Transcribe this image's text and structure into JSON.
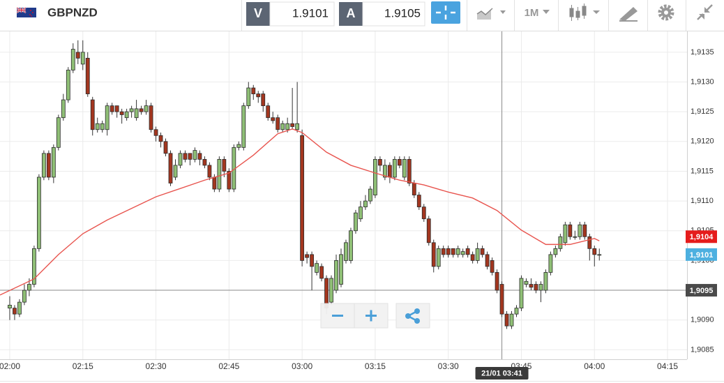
{
  "toolbar": {
    "symbol": "GBPNZD",
    "bid_label": "V",
    "bid": 1.9101,
    "ask_label": "A",
    "ask": 1.9105,
    "period": "1M"
  },
  "chart_data": {
    "type": "candlestick",
    "up_color": "#8fbf76",
    "down_color": "#a3361f",
    "x": [
      "02:00",
      "02:01",
      "02:02",
      "02:03",
      "02:04",
      "02:05",
      "02:06",
      "02:07",
      "02:08",
      "02:09",
      "02:10",
      "02:11",
      "02:12",
      "02:13",
      "02:14",
      "02:15",
      "02:16",
      "02:17",
      "02:18",
      "02:19",
      "02:20",
      "02:21",
      "02:22",
      "02:23",
      "02:24",
      "02:25",
      "02:26",
      "02:27",
      "02:28",
      "02:29",
      "02:30",
      "02:31",
      "02:32",
      "02:33",
      "02:34",
      "02:35",
      "02:36",
      "02:37",
      "02:38",
      "02:39",
      "02:40",
      "02:41",
      "02:42",
      "02:43",
      "02:44",
      "02:45",
      "02:46",
      "02:47",
      "02:48",
      "02:49",
      "02:50",
      "02:51",
      "02:52",
      "02:53",
      "02:54",
      "02:55",
      "02:56",
      "02:57",
      "02:58",
      "02:59",
      "03:00",
      "03:01",
      "03:02",
      "03:03",
      "03:04",
      "03:05",
      "03:06",
      "03:07",
      "03:08",
      "03:09",
      "03:10",
      "03:11",
      "03:12",
      "03:13",
      "03:14",
      "03:15",
      "03:16",
      "03:17",
      "03:18",
      "03:19",
      "03:20",
      "03:21",
      "03:22",
      "03:23",
      "03:24",
      "03:25",
      "03:26",
      "03:27",
      "03:28",
      "03:29",
      "03:30",
      "03:31",
      "03:32",
      "03:33",
      "03:34",
      "03:35",
      "03:36",
      "03:37",
      "03:38",
      "03:39",
      "03:40",
      "03:41",
      "03:42",
      "03:43",
      "03:44",
      "03:45",
      "03:46",
      "03:47",
      "03:48",
      "03:49",
      "03:50",
      "03:51",
      "03:52",
      "03:53",
      "03:54",
      "03:55",
      "03:56",
      "03:57",
      "03:58",
      "03:59",
      "04:00",
      "04:01"
    ],
    "open": [
      1.9092,
      1.9092,
      1.9091,
      1.9093,
      1.9095,
      1.9096,
      1.9102,
      1.9114,
      1.9118,
      1.9114,
      1.9119,
      1.9124,
      1.9127,
      1.9132,
      1.9135,
      1.9133,
      1.9134,
      1.9127,
      1.9122,
      1.9122,
      1.9122,
      1.9126,
      1.9126,
      1.9125,
      1.9124,
      1.9125,
      1.9124,
      1.91255,
      1.9125,
      1.9126,
      1.9122,
      1.9121,
      1.912,
      1.9118,
      1.9114,
      1.9116,
      1.9118,
      1.9118,
      1.9117,
      1.9118,
      1.9117,
      1.9116,
      1.9114,
      1.9112,
      1.9117,
      1.9115,
      1.9112,
      1.9119,
      1.9119,
      1.9126,
      1.9129,
      1.9128,
      1.9128,
      1.9126,
      1.9124,
      1.9124,
      1.9122,
      1.9122,
      1.9123,
      1.9122,
      1.9121,
      1.9101,
      1.9101,
      1.9098,
      1.9099,
      1.9097,
      1.9093,
      1.9095,
      1.9096,
      1.91,
      1.91,
      1.9105,
      1.9107,
      1.9109,
      1.911,
      1.9111,
      1.9117,
      1.9114,
      1.9116,
      1.9114,
      1.9117,
      1.9114,
      1.9117,
      1.9113,
      1.9111,
      1.9109,
      1.9107,
      1.9103,
      1.9099,
      1.9102,
      1.9102,
      1.9102,
      1.9101,
      1.9101,
      1.9102,
      1.9101,
      1.91,
      1.9102,
      1.9101,
      1.91,
      1.9098,
      1.9096,
      1.9091,
      1.9089,
      1.9091,
      1.9092,
      1.9096,
      1.9096,
      1.9096,
      1.9095,
      1.9095,
      1.9098,
      1.9101,
      1.9102,
      1.9103,
      1.9106,
      1.9104,
      1.9104,
      1.9106,
      1.9104,
      1.9102,
      1.9101
    ],
    "high": [
      1.9094,
      1.90925,
      1.90935,
      1.9096,
      1.9097,
      1.91025,
      1.91145,
      1.91185,
      1.91185,
      1.91195,
      1.91245,
      1.9128,
      1.91325,
      1.91365,
      1.9137,
      1.9137,
      1.9135,
      1.91275,
      1.9124,
      1.91235,
      1.91265,
      1.91265,
      1.9126,
      1.91255,
      1.91255,
      1.9126,
      1.9127,
      1.9126,
      1.9127,
      1.91265,
      1.91225,
      1.91215,
      1.91205,
      1.91185,
      1.9117,
      1.91185,
      1.91185,
      1.9118,
      1.9119,
      1.91185,
      1.91175,
      1.91165,
      1.91145,
      1.91175,
      1.91175,
      1.91155,
      1.91195,
      1.912,
      1.91265,
      1.913,
      1.91295,
      1.91285,
      1.91285,
      1.91265,
      1.9125,
      1.91245,
      1.91235,
      1.9124,
      1.9129,
      1.913,
      1.9122,
      1.91015,
      1.91015,
      1.91,
      1.90995,
      1.90975,
      1.90975,
      1.9101,
      1.9102,
      1.91035,
      1.91055,
      1.91085,
      1.911,
      1.9111,
      1.91125,
      1.91175,
      1.91175,
      1.9117,
      1.91165,
      1.91175,
      1.91175,
      1.91175,
      1.91175,
      1.91135,
      1.91115,
      1.91095,
      1.91075,
      1.91035,
      1.91025,
      1.91025,
      1.91025,
      1.9102,
      1.91025,
      1.9102,
      1.91025,
      1.91015,
      1.9103,
      1.91025,
      1.91015,
      1.91005,
      1.90985,
      1.90965,
      1.90915,
      1.90915,
      1.90925,
      1.90975,
      1.9097,
      1.9097,
      1.90965,
      1.90965,
      1.90985,
      1.91015,
      1.91025,
      1.91045,
      1.91065,
      1.91065,
      1.9105,
      1.91065,
      1.91065,
      1.91045,
      1.91025,
      1.9102
    ],
    "low": [
      1.909,
      1.909,
      1.90905,
      1.90925,
      1.9094,
      1.90955,
      1.91015,
      1.91135,
      1.91135,
      1.9113,
      1.91185,
      1.91235,
      1.91265,
      1.91315,
      1.9133,
      1.9132,
      1.91275,
      1.9121,
      1.91215,
      1.91215,
      1.9121,
      1.91245,
      1.9124,
      1.9123,
      1.91235,
      1.9124,
      1.91235,
      1.91245,
      1.91245,
      1.91215,
      1.912,
      1.9119,
      1.91175,
      1.91125,
      1.91135,
      1.91155,
      1.91165,
      1.9116,
      1.91165,
      1.9116,
      1.91155,
      1.91135,
      1.91115,
      1.91115,
      1.9114,
      1.91115,
      1.91115,
      1.91185,
      1.91185,
      1.91255,
      1.9127,
      1.91265,
      1.9125,
      1.91235,
      1.9123,
      1.91215,
      1.91215,
      1.91215,
      1.9122,
      1.91215,
      1.9099,
      1.90995,
      1.9095,
      1.90975,
      1.90965,
      1.9091,
      1.90925,
      1.90945,
      1.90955,
      1.90995,
      1.90995,
      1.91045,
      1.91065,
      1.91085,
      1.91095,
      1.91105,
      1.9115,
      1.91135,
      1.9113,
      1.91135,
      1.91155,
      1.91135,
      1.91125,
      1.91105,
      1.91085,
      1.91065,
      1.91025,
      1.9098,
      1.90985,
      1.91005,
      1.91005,
      1.91005,
      1.91005,
      1.91005,
      1.91005,
      1.90995,
      1.90995,
      1.91005,
      1.90985,
      1.90975,
      1.90945,
      1.90905,
      1.90885,
      1.90885,
      1.90905,
      1.90915,
      1.90955,
      1.9095,
      1.90945,
      1.9093,
      1.90945,
      1.90975,
      1.91005,
      1.91015,
      1.91025,
      1.91035,
      1.91035,
      1.91035,
      1.91035,
      1.91,
      1.9099,
      1.91
    ],
    "close": [
      1.90925,
      1.9091,
      1.9093,
      1.9095,
      1.9096,
      1.9102,
      1.9114,
      1.9118,
      1.9114,
      1.9119,
      1.9124,
      1.9127,
      1.9132,
      1.91355,
      1.9134,
      1.9135,
      1.9128,
      1.9122,
      1.9123,
      1.9123,
      1.9126,
      1.9125,
      1.9125,
      1.91245,
      1.9125,
      1.91255,
      1.91255,
      1.9125,
      1.9126,
      1.9122,
      1.9121,
      1.912,
      1.9118,
      1.9113,
      1.9116,
      1.9118,
      1.9117,
      1.9117,
      1.91185,
      1.9117,
      1.9116,
      1.9114,
      1.9112,
      1.9117,
      1.9115,
      1.9112,
      1.9119,
      1.91195,
      1.9126,
      1.9129,
      1.9128,
      1.91275,
      1.9126,
      1.9124,
      1.91235,
      1.9122,
      1.9123,
      1.9123,
      1.91225,
      1.9123,
      1.91,
      1.91005,
      1.9099,
      1.90995,
      1.9097,
      1.9092,
      1.9097,
      1.91,
      1.9101,
      1.9103,
      1.9105,
      1.9108,
      1.9109,
      1.911,
      1.9112,
      1.9117,
      1.9116,
      1.9116,
      1.9114,
      1.9117,
      1.9116,
      1.9117,
      1.9113,
      1.9111,
      1.9109,
      1.9107,
      1.9103,
      1.9099,
      1.9102,
      1.9101,
      1.9101,
      1.9101,
      1.9102,
      1.91015,
      1.9101,
      1.91,
      1.9102,
      1.9101,
      1.9099,
      1.9098,
      1.9095,
      1.9091,
      1.9089,
      1.9091,
      1.9092,
      1.9097,
      1.90965,
      1.90955,
      1.9095,
      1.9096,
      1.9098,
      1.9101,
      1.9102,
      1.9104,
      1.9106,
      1.9104,
      1.9104,
      1.9106,
      1.9104,
      1.9102,
      1.9101,
      1.9101
    ],
    "overlay": {
      "type": "line",
      "color": "#e8544e",
      "x": [
        "01:58",
        "02:05",
        "02:10",
        "02:15",
        "02:20",
        "02:30",
        "02:40",
        "02:45",
        "02:50",
        "02:55",
        "02:58",
        "03:00",
        "03:05",
        "03:10",
        "03:15",
        "03:20",
        "03:25",
        "03:30",
        "03:35",
        "03:40",
        "03:45",
        "03:50",
        "03:55",
        "04:00",
        "04:01"
      ],
      "values": [
        1.90942,
        1.90969,
        1.9101,
        1.91045,
        1.91068,
        1.91107,
        1.91135,
        1.91147,
        1.91177,
        1.91213,
        1.91221,
        1.91215,
        1.91182,
        1.9116,
        1.91147,
        1.91135,
        1.91127,
        1.91115,
        1.91105,
        1.91084,
        1.91051,
        1.91027,
        1.91027,
        1.91037,
        1.91033
      ]
    },
    "xlim": [
      "01:58",
      "04:19"
    ],
    "xticks": [
      "02:00",
      "02:15",
      "02:30",
      "02:45",
      "03:00",
      "03:15",
      "03:30",
      "03:45",
      "04:00",
      "04:15"
    ],
    "ylim": [
      1.90834,
      1.91385
    ],
    "yticks": [
      {
        "value": 1.9085,
        "label": "1,9085"
      },
      {
        "value": 1.909,
        "label": "1,9090"
      },
      {
        "value": 1.9095,
        "label": "1,9095"
      },
      {
        "value": 1.91,
        "label": "1,9100"
      },
      {
        "value": 1.9105,
        "label": "1,9105"
      },
      {
        "value": 1.911,
        "label": "1,9110"
      },
      {
        "value": 1.9115,
        "label": "1,9115"
      },
      {
        "value": 1.912,
        "label": "1,9120"
      },
      {
        "value": 1.9125,
        "label": "1,9125"
      },
      {
        "value": 1.913,
        "label": "1,9130"
      },
      {
        "value": 1.9135,
        "label": "1,9135"
      }
    ],
    "grid": true,
    "price_tags": [
      {
        "value": 1.9104,
        "label": "1,9104",
        "color": "#e51c1c"
      },
      {
        "value": 1.9101,
        "label": "1,9101",
        "color": "#4db0e0"
      }
    ],
    "crosshair": {
      "x": "03:41",
      "x_label": "21/01 03:41",
      "y": 1.9095,
      "y_label": "1,9095"
    }
  }
}
